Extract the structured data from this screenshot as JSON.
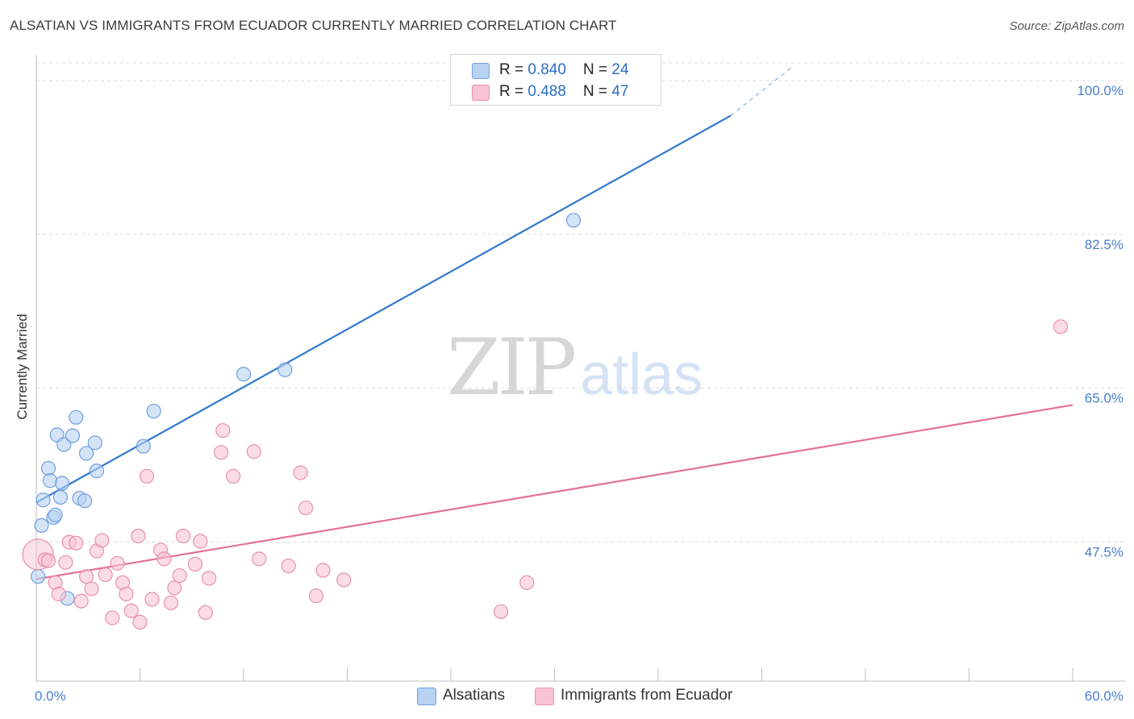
{
  "title": "ALSATIAN VS IMMIGRANTS FROM ECUADOR CURRENTLY MARRIED CORRELATION CHART",
  "source": "Source: ZipAtlas.com",
  "watermark": {
    "zip": "ZIP",
    "atlas": "atlas"
  },
  "legend": {
    "r_label": "R = ",
    "n_label": "N = ",
    "items": [
      {
        "name": "Alsatians",
        "r": "0.840",
        "n": "24",
        "fill": "#b8d2f2",
        "stroke": "#6f9fe0"
      },
      {
        "name": "Immigrants from Ecuador",
        "r": "0.488",
        "n": "47",
        "fill": "#f8c4d4",
        "stroke": "#e890ad"
      }
    ]
  },
  "chart_data": {
    "type": "scatter",
    "title": "ALSATIAN VS IMMIGRANTS FROM ECUADOR CURRENTLY MARRIED CORRELATION CHART",
    "xlabel": "",
    "ylabel": "Currently Married",
    "xlim": [
      0,
      60
    ],
    "ylim": [
      31.7,
      102.0
    ],
    "x_tick_labels": [
      "0.0%",
      "60.0%"
    ],
    "y_ticks": [
      47.5,
      65.0,
      82.5,
      100.0
    ],
    "y_tick_labels": [
      "47.5%",
      "65.0%",
      "82.5%",
      "100.0%"
    ],
    "grid": true,
    "legend_position": "top-center",
    "series": [
      {
        "name": "Alsatians",
        "color": "#6f9fe0",
        "fill": "#b8d2f2",
        "line_color": "#2f78d0",
        "trend": {
          "x0": 0.0,
          "y0": 52.0,
          "x1": 40.2,
          "y1": 96.0,
          "dash_x1": 43.8,
          "dash_y1": 101.6
        },
        "points": [
          [
            0.1,
            43.6
          ],
          [
            0.3,
            49.4
          ],
          [
            0.4,
            52.3
          ],
          [
            0.7,
            55.9
          ],
          [
            0.8,
            54.5
          ],
          [
            1.0,
            50.3
          ],
          [
            1.1,
            50.6
          ],
          [
            1.2,
            59.7
          ],
          [
            1.4,
            52.6
          ],
          [
            1.5,
            54.2
          ],
          [
            1.6,
            58.6
          ],
          [
            1.8,
            41.1
          ],
          [
            2.1,
            59.6
          ],
          [
            2.3,
            61.7
          ],
          [
            2.5,
            52.5
          ],
          [
            2.8,
            52.2
          ],
          [
            2.9,
            57.6
          ],
          [
            3.4,
            58.8
          ],
          [
            3.5,
            55.6
          ],
          [
            6.2,
            58.4
          ],
          [
            6.8,
            62.4
          ],
          [
            12.0,
            66.6
          ],
          [
            14.4,
            67.1
          ],
          [
            31.1,
            84.1
          ]
        ]
      },
      {
        "name": "Immigrants from Ecuador",
        "color": "#e890ad",
        "fill": "#f8c4d4",
        "line_color": "#e2709a",
        "trend": {
          "x0": 0.0,
          "y0": 43.3,
          "x1": 60.0,
          "y1": 63.1
        },
        "points": [
          [
            0.1,
            46.1
          ],
          [
            0.5,
            45.5
          ],
          [
            0.7,
            45.4
          ],
          [
            1.1,
            42.9
          ],
          [
            1.3,
            41.6
          ],
          [
            1.7,
            45.2
          ],
          [
            1.9,
            47.5
          ],
          [
            2.3,
            47.4
          ],
          [
            2.6,
            40.8
          ],
          [
            2.9,
            43.6
          ],
          [
            3.2,
            42.2
          ],
          [
            3.5,
            46.5
          ],
          [
            3.8,
            47.7
          ],
          [
            4.0,
            43.8
          ],
          [
            4.4,
            38.9
          ],
          [
            4.7,
            45.1
          ],
          [
            5.0,
            42.9
          ],
          [
            5.2,
            41.6
          ],
          [
            5.5,
            39.7
          ],
          [
            5.9,
            48.2
          ],
          [
            6.0,
            38.4
          ],
          [
            6.4,
            55.0
          ],
          [
            6.7,
            41.0
          ],
          [
            7.2,
            46.6
          ],
          [
            7.4,
            45.6
          ],
          [
            7.8,
            40.6
          ],
          [
            8.0,
            42.3
          ],
          [
            8.3,
            43.7
          ],
          [
            8.5,
            48.2
          ],
          [
            9.2,
            45.0
          ],
          [
            9.5,
            47.6
          ],
          [
            9.8,
            39.5
          ],
          [
            10.0,
            43.4
          ],
          [
            10.7,
            57.7
          ],
          [
            10.8,
            60.2
          ],
          [
            11.4,
            55.0
          ],
          [
            12.6,
            57.8
          ],
          [
            12.9,
            45.6
          ],
          [
            14.6,
            44.8
          ],
          [
            15.3,
            55.4
          ],
          [
            15.6,
            51.4
          ],
          [
            16.2,
            41.4
          ],
          [
            16.6,
            44.3
          ],
          [
            17.8,
            43.2
          ],
          [
            26.9,
            39.6
          ],
          [
            28.4,
            42.9
          ],
          [
            59.3,
            72.0
          ]
        ]
      }
    ]
  }
}
